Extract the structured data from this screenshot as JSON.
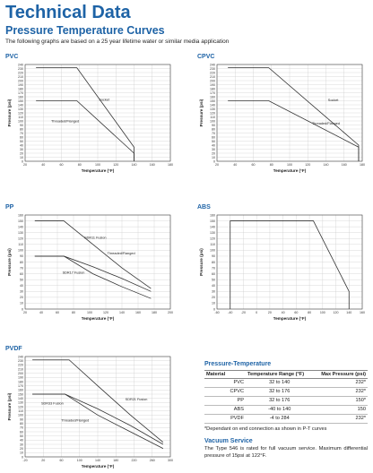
{
  "header": {
    "title": "Technical Data",
    "subtitle": "Pressure Temperature Curves",
    "intro": "The following graphs are based on a 25 year lifetime water or similar media application"
  },
  "pt_table": {
    "heading": "Pressure-Temperature",
    "columns": [
      "Material",
      "Temperature Range (°F)",
      "Max Pressure (psi)"
    ],
    "rows": [
      [
        "PVC",
        "32 to 140",
        "232*"
      ],
      [
        "CPVC",
        "32 to 176",
        "232*"
      ],
      [
        "PP",
        "32 to 176",
        "150*"
      ],
      [
        "ABS",
        "-40 to 140",
        "150"
      ],
      [
        "PVDF",
        "-4 to 284",
        "232*"
      ]
    ],
    "note": "*Dependant on end connection as shown in P-T curves"
  },
  "vacuum": {
    "heading": "Vacuum Service",
    "text": "The Type 546 is rated for full vacuum service. Maximum differential pressure of 15psi at 122°F."
  },
  "chart_data": [
    {
      "type": "line",
      "title": "PVC",
      "xlabel": "Temperature (°F)",
      "ylabel": "Pressure (psi)",
      "xlim": [
        20,
        180
      ],
      "ylim": [
        0,
        240
      ],
      "xticks": [
        20,
        40,
        60,
        80,
        100,
        120,
        140,
        160,
        180
      ],
      "yticks": [
        0,
        10,
        20,
        30,
        40,
        50,
        60,
        70,
        80,
        90,
        100,
        110,
        120,
        130,
        140,
        150,
        160,
        170,
        180,
        190,
        200,
        210,
        220,
        230,
        240
      ],
      "grid": true,
      "series": [
        {
          "name": "Socket",
          "x": [
            32,
            77,
            140,
            140
          ],
          "y": [
            232,
            232,
            35,
            0
          ],
          "label_at": [
            107,
            150
          ]
        },
        {
          "name": "Threaded/Flanged",
          "x": [
            32,
            77,
            140,
            140
          ],
          "y": [
            150,
            150,
            20,
            0
          ],
          "label_at": [
            64,
            97
          ]
        }
      ]
    },
    {
      "type": "line",
      "title": "CPVC",
      "xlabel": "Temperature (°F)",
      "ylabel": "Pressure (psi)",
      "xlim": [
        20,
        180
      ],
      "ylim": [
        0,
        240
      ],
      "xticks": [
        20,
        40,
        60,
        80,
        100,
        120,
        140,
        160,
        180
      ],
      "yticks": [
        0,
        10,
        20,
        30,
        40,
        50,
        60,
        70,
        80,
        90,
        100,
        110,
        120,
        130,
        140,
        150,
        160,
        170,
        180,
        190,
        200,
        210,
        220,
        230,
        240
      ],
      "grid": true,
      "series": [
        {
          "name": "Socket",
          "x": [
            32,
            77,
            176,
            176
          ],
          "y": [
            232,
            232,
            40,
            0
          ],
          "label_at": [
            148,
            149
          ]
        },
        {
          "name": "Threaded/Flanged",
          "x": [
            32,
            77,
            176,
            176
          ],
          "y": [
            150,
            150,
            35,
            0
          ],
          "label_at": [
            140,
            91
          ]
        }
      ]
    },
    {
      "type": "line",
      "title": "PP",
      "xlabel": "Temperature (°F)",
      "ylabel": "Pressure (psi)",
      "xlim": [
        20,
        200
      ],
      "ylim": [
        0,
        160
      ],
      "xticks": [
        20,
        40,
        60,
        80,
        100,
        120,
        140,
        160,
        180,
        200
      ],
      "yticks": [
        0,
        10,
        20,
        30,
        40,
        50,
        60,
        70,
        80,
        90,
        100,
        110,
        120,
        130,
        140,
        150,
        160
      ],
      "grid": true,
      "series": [
        {
          "name": "SDR11 Fusion",
          "x": [
            32,
            68,
            104,
            140,
            176
          ],
          "y": [
            150,
            150,
            110,
            70,
            35
          ],
          "label_at": [
            107,
            120
          ]
        },
        {
          "name": "Threaded/Flanged",
          "x": [
            32,
            68,
            104,
            140,
            176
          ],
          "y": [
            90,
            90,
            72,
            52,
            30
          ],
          "label_at": [
            139,
            93
          ]
        },
        {
          "name": "SDR17 Fusion",
          "x": [
            32,
            68,
            104,
            140,
            176
          ],
          "y": [
            90,
            90,
            60,
            38,
            18
          ],
          "label_at": [
            80,
            60
          ]
        }
      ]
    },
    {
      "type": "line",
      "title": "ABS",
      "xlabel": "Temperature (°F)",
      "ylabel": "Pressure (psi)",
      "xlim": [
        -60,
        160
      ],
      "ylim": [
        0,
        160
      ],
      "xticks": [
        -60,
        -40,
        -20,
        0,
        20,
        40,
        60,
        80,
        100,
        120,
        140,
        160
      ],
      "yticks": [
        0,
        10,
        20,
        30,
        40,
        50,
        60,
        70,
        80,
        90,
        100,
        110,
        120,
        130,
        140,
        150,
        160
      ],
      "grid": true,
      "series": [
        {
          "name": "",
          "x": [
            -40,
            -40,
            86,
            140,
            140
          ],
          "y": [
            0,
            150,
            150,
            30,
            0
          ]
        }
      ]
    },
    {
      "type": "line",
      "title": "PVDF",
      "xlabel": "Temperature (°F)",
      "ylabel": "Pressure (psi)",
      "xlim": [
        -20,
        300
      ],
      "ylim": [
        0,
        240
      ],
      "xticks": [
        -20,
        20,
        60,
        100,
        140,
        180,
        220,
        260,
        300
      ],
      "yticks": [
        0,
        10,
        20,
        30,
        40,
        50,
        60,
        70,
        80,
        90,
        100,
        110,
        120,
        130,
        140,
        150,
        160,
        170,
        180,
        190,
        200,
        210,
        220,
        230,
        240
      ],
      "grid": true,
      "series": [
        {
          "name": "SDR21 Fusion",
          "x": [
            -4,
            77,
            140,
            212,
            284
          ],
          "y": [
            232,
            232,
            170,
            100,
            35
          ],
          "label_at": [
            225,
            135
          ]
        },
        {
          "name": "SDR33 Fusion",
          "x": [
            -4,
            68,
            140,
            212,
            284
          ],
          "y": [
            150,
            150,
            115,
            75,
            30
          ],
          "label_at": [
            40,
            125
          ]
        },
        {
          "name": "Threaded/Flanged",
          "x": [
            -4,
            68,
            140,
            212,
            284
          ],
          "y": [
            150,
            150,
            100,
            60,
            20
          ],
          "label_at": [
            90,
            85
          ]
        }
      ]
    }
  ]
}
